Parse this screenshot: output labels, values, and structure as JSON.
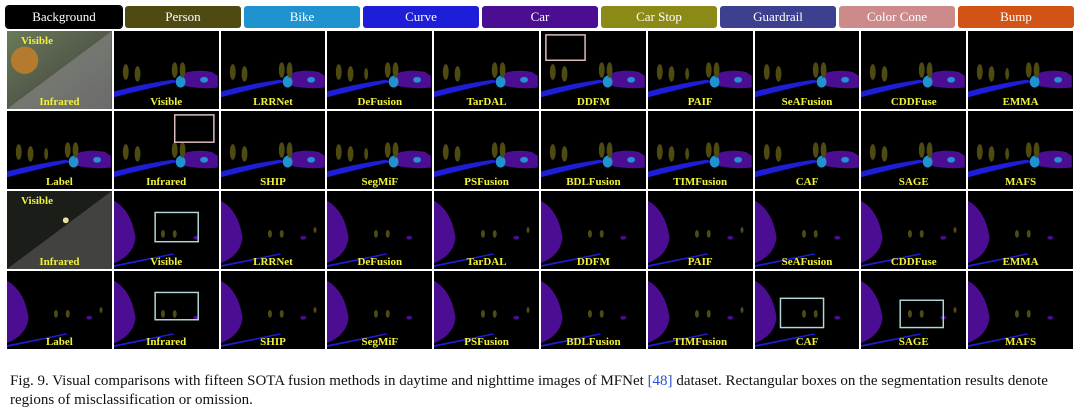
{
  "legend": [
    {
      "label": "Background",
      "color": "#000000"
    },
    {
      "label": "Person",
      "color": "#4f4a12"
    },
    {
      "label": "Bike",
      "color": "#1f92d0"
    },
    {
      "label": "Curve",
      "color": "#1e1ed8"
    },
    {
      "label": "Car",
      "color": "#4b0e92"
    },
    {
      "label": "Car Stop",
      "color": "#8c8a16"
    },
    {
      "label": "Guardrail",
      "color": "#3d3f8f"
    },
    {
      "label": "Color Cone",
      "color": "#cc8a8a"
    },
    {
      "label": "Bump",
      "color": "#d25316"
    }
  ],
  "rows": [
    {
      "scene": "day",
      "labels": [
        "Infrared",
        "Visible",
        "LRRNet",
        "DeFusion",
        "TarDAL",
        "DDFM",
        "PAIF",
        "SeAFusion",
        "CDDFuse",
        "EMMA"
      ],
      "corner": "Visible"
    },
    {
      "scene": "day",
      "labels": [
        "Label",
        "Infrared",
        "SHIP",
        "SegMiF",
        "PSFusion",
        "BDLFusion",
        "TIMFusion",
        "CAF",
        "SAGE",
        "MAFS"
      ],
      "corner": ""
    },
    {
      "scene": "night",
      "labels": [
        "Infrared",
        "Visible",
        "LRRNet",
        "DeFusion",
        "TarDAL",
        "DDFM",
        "PAIF",
        "SeAFusion",
        "CDDFuse",
        "EMMA"
      ],
      "corner": "Visible"
    },
    {
      "scene": "night",
      "labels": [
        "Label",
        "Infrared",
        "SHIP",
        "SegMiF",
        "PSFusion",
        "BDLFusion",
        "TIMFusion",
        "CAF",
        "SAGE",
        "MAFS"
      ],
      "corner": ""
    }
  ],
  "caption": {
    "before": "Fig. 9.  Visual comparisons with fifteen SOTA fusion methods in daytime and nighttime images of MFNet ",
    "ref": "[48]",
    "after": " dataset. Rectangular boxes on the segmentation results denote regions of misclassification or omission."
  }
}
